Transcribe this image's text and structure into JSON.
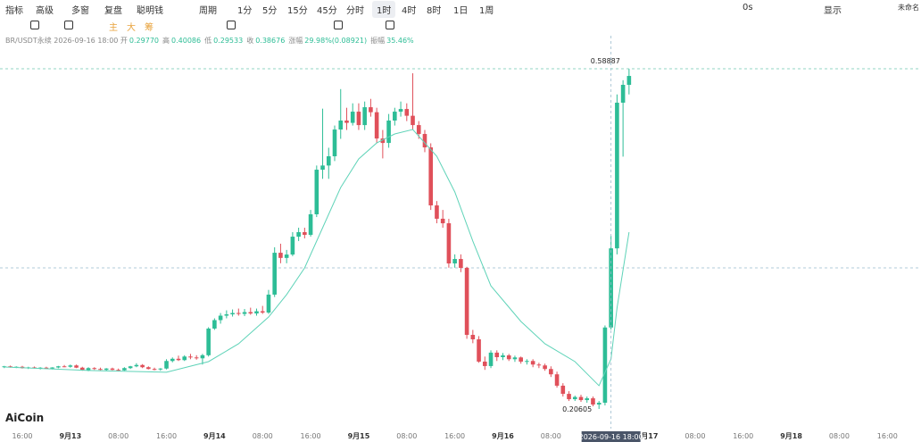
{
  "toolbar": {
    "items": [
      "指标",
      "高级",
      "多窗",
      "复盘",
      "聪明钱",
      "周期",
      "1分",
      "5分",
      "15分",
      "45分",
      "分时",
      "1时",
      "4时",
      "8时",
      "1日",
      "1周"
    ],
    "right": [
      "0s",
      "显示",
      "未命名"
    ]
  },
  "drawing_tools": {
    "labels": [
      "主",
      "大",
      "筹"
    ]
  },
  "info": {
    "symbol": "BR/USDT永续",
    "time": "2026-09-16 18:00",
    "fields": [
      {
        "label": "开",
        "value": "0.29770"
      },
      {
        "label": "高",
        "value": "0.40086"
      },
      {
        "label": "低",
        "value": "0.29533"
      },
      {
        "label": "收",
        "value": "0.38676"
      },
      {
        "label": "涨幅",
        "value": "29.98%(0.08921)"
      },
      {
        "label": "振幅",
        "value": "35.46%"
      }
    ]
  },
  "chart_data": {
    "type": "candlestick",
    "watermark": "AiCoin",
    "up_color": "#2dbd96",
    "down_color": "#e0505a",
    "xlim": [
      -0.71,
      152.6
    ],
    "ylim": [
      0.1839,
      0.611
    ],
    "xticks": [
      {
        "value": 3,
        "label": "16:00"
      },
      {
        "value": 11,
        "label": "9月13"
      },
      {
        "value": 19,
        "label": "08:00"
      },
      {
        "value": 27,
        "label": "16:00"
      },
      {
        "value": 35,
        "label": "9月14"
      },
      {
        "value": 43,
        "label": "08:00"
      },
      {
        "value": 51,
        "label": "16:00"
      },
      {
        "value": 59,
        "label": "9月15"
      },
      {
        "value": 67,
        "label": "08:00"
      },
      {
        "value": 75,
        "label": "16:00"
      },
      {
        "value": 83,
        "label": "9月16"
      },
      {
        "value": 91,
        "label": "08:00"
      },
      {
        "value": 107,
        "label": "9月17"
      },
      {
        "value": 115,
        "label": "08:00"
      },
      {
        "value": 123,
        "label": "16:00"
      },
      {
        "value": 131,
        "label": "9月18"
      },
      {
        "value": 139,
        "label": "08:00"
      },
      {
        "value": 147,
        "label": "16:00"
      }
    ],
    "crosshair": {
      "value": 101,
      "label": "2026-09-16 18:00"
    },
    "candles": [
      [
        0.2533,
        0.2545,
        0.252,
        0.254
      ],
      [
        0.254,
        0.2548,
        0.2525,
        0.253
      ],
      [
        0.253,
        0.254,
        0.252,
        0.2535
      ],
      [
        0.2535,
        0.2545,
        0.2515,
        0.252
      ],
      [
        0.252,
        0.2535,
        0.251,
        0.2528
      ],
      [
        0.2528,
        0.2538,
        0.2515,
        0.2518
      ],
      [
        0.2518,
        0.253,
        0.2505,
        0.2525
      ],
      [
        0.2525,
        0.2535,
        0.2512,
        0.2515
      ],
      [
        0.2515,
        0.253,
        0.2505,
        0.2527
      ],
      [
        0.2527,
        0.2545,
        0.2518,
        0.254
      ],
      [
        0.254,
        0.2555,
        0.253,
        0.2535
      ],
      [
        0.2535,
        0.256,
        0.2525,
        0.255
      ],
      [
        0.255,
        0.256,
        0.252,
        0.2525
      ],
      [
        0.2525,
        0.2535,
        0.249,
        0.2495
      ],
      [
        0.2495,
        0.253,
        0.2485,
        0.252
      ],
      [
        0.252,
        0.253,
        0.25,
        0.251
      ],
      [
        0.251,
        0.2525,
        0.2495,
        0.25
      ],
      [
        0.25,
        0.252,
        0.249,
        0.2515
      ],
      [
        0.2515,
        0.2525,
        0.2495,
        0.25
      ],
      [
        0.25,
        0.2515,
        0.2485,
        0.2495
      ],
      [
        0.2495,
        0.253,
        0.249,
        0.252
      ],
      [
        0.252,
        0.2545,
        0.251,
        0.254
      ],
      [
        0.254,
        0.2575,
        0.253,
        0.2555
      ],
      [
        0.2555,
        0.2565,
        0.252,
        0.253
      ],
      [
        0.253,
        0.254,
        0.2505,
        0.251
      ],
      [
        0.251,
        0.2525,
        0.2495,
        0.2505
      ],
      [
        0.2505,
        0.252,
        0.249,
        0.2515
      ],
      [
        0.2515,
        0.262,
        0.2505,
        0.26
      ],
      [
        0.26,
        0.264,
        0.2585,
        0.2625
      ],
      [
        0.2625,
        0.266,
        0.26,
        0.261
      ],
      [
        0.261,
        0.2665,
        0.26,
        0.265
      ],
      [
        0.265,
        0.268,
        0.262,
        0.264
      ],
      [
        0.264,
        0.2665,
        0.2615,
        0.263
      ],
      [
        0.263,
        0.268,
        0.256,
        0.2665
      ],
      [
        0.2665,
        0.298,
        0.265,
        0.2965
      ],
      [
        0.2965,
        0.308,
        0.295,
        0.306
      ],
      [
        0.306,
        0.314,
        0.302,
        0.311
      ],
      [
        0.311,
        0.317,
        0.308,
        0.3125
      ],
      [
        0.3125,
        0.318,
        0.31,
        0.314
      ],
      [
        0.314,
        0.319,
        0.311,
        0.313
      ],
      [
        0.313,
        0.3185,
        0.3105,
        0.315
      ],
      [
        0.315,
        0.32,
        0.312,
        0.3135
      ],
      [
        0.3135,
        0.319,
        0.311,
        0.316
      ],
      [
        0.316,
        0.322,
        0.313,
        0.3145
      ],
      [
        0.3145,
        0.34,
        0.313,
        0.3347
      ],
      [
        0.3347,
        0.388,
        0.332,
        0.3818
      ],
      [
        0.3818,
        0.392,
        0.37,
        0.376
      ],
      [
        0.376,
        0.385,
        0.37,
        0.3798
      ],
      [
        0.3798,
        0.405,
        0.378,
        0.3999
      ],
      [
        0.3999,
        0.41,
        0.395,
        0.405
      ],
      [
        0.405,
        0.41,
        0.398,
        0.402
      ],
      [
        0.402,
        0.43,
        0.4,
        0.4251
      ],
      [
        0.4251,
        0.48,
        0.422,
        0.4753
      ],
      [
        0.4753,
        0.544,
        0.465,
        0.48
      ],
      [
        0.48,
        0.5,
        0.465,
        0.4904
      ],
      [
        0.4904,
        0.525,
        0.485,
        0.5205
      ],
      [
        0.5205,
        0.566,
        0.51,
        0.5306
      ],
      [
        0.5306,
        0.545,
        0.52,
        0.528
      ],
      [
        0.528,
        0.55,
        0.525,
        0.5406
      ],
      [
        0.5406,
        0.55,
        0.52,
        0.5255
      ],
      [
        0.5255,
        0.552,
        0.52,
        0.5456
      ],
      [
        0.5456,
        0.555,
        0.535,
        0.54
      ],
      [
        0.54,
        0.545,
        0.505,
        0.5104
      ],
      [
        0.5104,
        0.52,
        0.488,
        0.5054
      ],
      [
        0.5054,
        0.538,
        0.5,
        0.5306
      ],
      [
        0.5306,
        0.545,
        0.525,
        0.5406
      ],
      [
        0.5406,
        0.552,
        0.535,
        0.5436
      ],
      [
        0.5436,
        0.55,
        0.53,
        0.536
      ],
      [
        0.536,
        0.5838,
        0.52,
        0.5255
      ],
      [
        0.5255,
        0.53,
        0.51,
        0.5155
      ],
      [
        0.5155,
        0.52,
        0.495,
        0.5004
      ],
      [
        0.5004,
        0.505,
        0.43,
        0.4351
      ],
      [
        0.4351,
        0.44,
        0.415,
        0.4201
      ],
      [
        0.4201,
        0.43,
        0.41,
        0.415
      ],
      [
        0.415,
        0.42,
        0.365,
        0.3698
      ],
      [
        0.3698,
        0.38,
        0.365,
        0.3748
      ],
      [
        0.3748,
        0.38,
        0.36,
        0.3648
      ],
      [
        0.3648,
        0.366,
        0.285,
        0.2894
      ],
      [
        0.2894,
        0.295,
        0.28,
        0.2844
      ],
      [
        0.2844,
        0.288,
        0.258,
        0.2593
      ],
      [
        0.2593,
        0.265,
        0.25,
        0.2543
      ],
      [
        0.2543,
        0.272,
        0.252,
        0.2694
      ],
      [
        0.2694,
        0.272,
        0.26,
        0.2643
      ],
      [
        0.2643,
        0.269,
        0.261,
        0.2663
      ],
      [
        0.2663,
        0.268,
        0.26,
        0.262
      ],
      [
        0.262,
        0.266,
        0.259,
        0.264
      ],
      [
        0.264,
        0.265,
        0.257,
        0.2593
      ],
      [
        0.2593,
        0.262,
        0.256,
        0.26
      ],
      [
        0.26,
        0.262,
        0.253,
        0.256
      ],
      [
        0.256,
        0.258,
        0.252,
        0.255
      ],
      [
        0.255,
        0.257,
        0.249,
        0.251
      ],
      [
        0.251,
        0.254,
        0.242,
        0.245
      ],
      [
        0.245,
        0.248,
        0.23,
        0.2322
      ],
      [
        0.2322,
        0.235,
        0.22,
        0.223
      ],
      [
        0.223,
        0.226,
        0.215,
        0.217
      ],
      [
        0.217,
        0.221,
        0.215,
        0.2195
      ],
      [
        0.2195,
        0.222,
        0.214,
        0.216
      ],
      [
        0.216,
        0.22,
        0.213,
        0.218
      ],
      [
        0.218,
        0.22,
        0.209,
        0.211
      ],
      [
        0.211,
        0.215,
        0.20605,
        0.213
      ],
      [
        0.213,
        0.3,
        0.21,
        0.2977
      ],
      [
        0.2977,
        0.40086,
        0.29533,
        0.38676
      ],
      [
        0.38676,
        0.56,
        0.38,
        0.5507
      ],
      [
        0.5507,
        0.576,
        0.49,
        0.5708
      ],
      [
        0.5708,
        0.58887,
        0.56,
        0.5808
      ]
    ],
    "ma": {
      "color": "#5fd3b8",
      "x": [
        0,
        14,
        27,
        34,
        39,
        44,
        47,
        50,
        53,
        56,
        59,
        62,
        65,
        68,
        72,
        75,
        78,
        81,
        86,
        90,
        95,
        99,
        101,
        102,
        104
      ],
      "values": [
        0.2533,
        0.2493,
        0.2473,
        0.2593,
        0.2794,
        0.3095,
        0.3347,
        0.3648,
        0.41,
        0.4552,
        0.4874,
        0.5054,
        0.5155,
        0.5205,
        0.4904,
        0.4502,
        0.3949,
        0.3446,
        0.3045,
        0.2794,
        0.2593,
        0.2322,
        0.2623,
        0.3196,
        0.405
      ]
    }
  }
}
